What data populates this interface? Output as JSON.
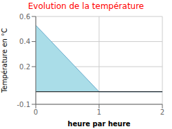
{
  "chart_data": {
    "type": "area",
    "title": "Evolution de la température",
    "title_color": "#ff0000",
    "x_label": "heure par heure",
    "y_label": "Température en °C",
    "series": [
      {
        "type": "area",
        "x": [
          0,
          1,
          1
        ],
        "values": [
          0.53,
          0.0,
          0.0
        ],
        "color": "#aadde8"
      },
      {
        "type": "line",
        "x": [
          0,
          1,
          1,
          2
        ],
        "values": [
          0.53,
          0.0,
          0.0,
          0.0
        ],
        "color": "#66aacc"
      }
    ],
    "baseline": 0.0,
    "xlim": [
      0,
      2
    ],
    "xticks": [
      0,
      1,
      2
    ],
    "ylim": [
      -0.1,
      0.6
    ],
    "yticks": [
      -0.1,
      0.2,
      0.4,
      0.6
    ],
    "grid": true
  }
}
